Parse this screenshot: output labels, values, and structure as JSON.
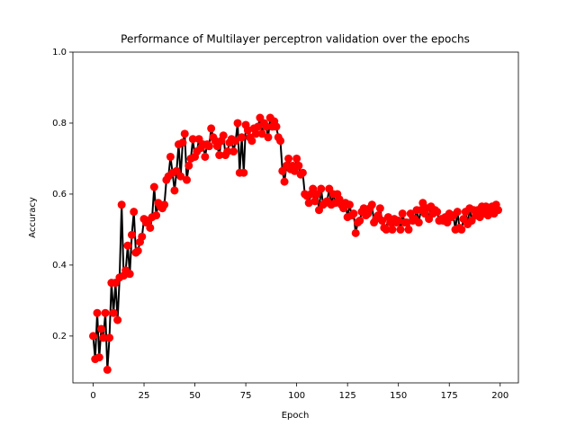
{
  "chart_data": {
    "type": "line",
    "title": "Performance of Multilayer perceptron validation over the epochs",
    "x_label": "Epoch",
    "y_label": "Accuracy",
    "x": [
      0,
      1,
      2,
      3,
      4,
      5,
      6,
      7,
      8,
      9,
      10,
      11,
      12,
      13,
      14,
      15,
      16,
      17,
      18,
      19,
      20,
      21,
      22,
      23,
      24,
      25,
      26,
      27,
      28,
      29,
      30,
      31,
      32,
      33,
      34,
      35,
      36,
      37,
      38,
      39,
      40,
      41,
      42,
      43,
      44,
      45,
      46,
      47,
      48,
      49,
      50,
      51,
      52,
      53,
      54,
      55,
      56,
      57,
      58,
      59,
      60,
      61,
      62,
      63,
      64,
      65,
      66,
      67,
      68,
      69,
      70,
      71,
      72,
      73,
      74,
      75,
      76,
      77,
      78,
      79,
      80,
      81,
      82,
      83,
      84,
      85,
      86,
      87,
      88,
      89,
      90,
      91,
      92,
      93,
      94,
      95,
      96,
      97,
      98,
      99,
      100,
      101,
      102,
      103,
      104,
      105,
      106,
      107,
      108,
      109,
      110,
      111,
      112,
      113,
      114,
      115,
      116,
      117,
      118,
      119,
      120,
      121,
      122,
      123,
      124,
      125,
      126,
      127,
      128,
      129,
      130,
      131,
      132,
      133,
      134,
      135,
      136,
      137,
      138,
      139,
      140,
      141,
      142,
      143,
      144,
      145,
      146,
      147,
      148,
      149,
      150,
      151,
      152,
      153,
      154,
      155,
      156,
      157,
      158,
      159,
      160,
      161,
      162,
      163,
      164,
      165,
      166,
      167,
      168,
      169,
      170,
      171,
      172,
      173,
      174,
      175,
      176,
      177,
      178,
      179,
      180,
      181,
      182,
      183,
      184,
      185,
      186,
      187,
      188,
      189,
      190,
      191,
      192,
      193,
      194,
      195,
      196,
      197,
      198,
      199
    ],
    "series": [
      {
        "color": "#000000",
        "marker_color": "#ff0000",
        "values": [
          0.2,
          0.135,
          0.265,
          0.14,
          0.22,
          0.195,
          0.265,
          0.105,
          0.195,
          0.35,
          0.265,
          0.35,
          0.245,
          0.365,
          0.57,
          0.37,
          0.385,
          0.455,
          0.375,
          0.485,
          0.55,
          0.435,
          0.44,
          0.465,
          0.48,
          0.53,
          0.52,
          0.525,
          0.505,
          0.535,
          0.62,
          0.54,
          0.575,
          0.565,
          0.56,
          0.57,
          0.64,
          0.65,
          0.705,
          0.66,
          0.61,
          0.665,
          0.74,
          0.65,
          0.745,
          0.77,
          0.64,
          0.68,
          0.7,
          0.755,
          0.705,
          0.72,
          0.755,
          0.73,
          0.74,
          0.705,
          0.74,
          0.735,
          0.785,
          0.76,
          0.75,
          0.735,
          0.71,
          0.75,
          0.765,
          0.71,
          0.72,
          0.745,
          0.755,
          0.72,
          0.75,
          0.8,
          0.66,
          0.76,
          0.66,
          0.795,
          0.78,
          0.76,
          0.75,
          0.785,
          0.77,
          0.79,
          0.815,
          0.77,
          0.8,
          0.79,
          0.76,
          0.815,
          0.79,
          0.805,
          0.79,
          0.76,
          0.75,
          0.665,
          0.635,
          0.68,
          0.7,
          0.67,
          0.68,
          0.665,
          0.7,
          0.68,
          0.655,
          0.66,
          0.6,
          0.595,
          0.575,
          0.6,
          0.615,
          0.58,
          0.6,
          0.555,
          0.615,
          0.57,
          0.575,
          0.58,
          0.615,
          0.57,
          0.6,
          0.575,
          0.6,
          0.585,
          0.57,
          0.56,
          0.575,
          0.535,
          0.57,
          0.54,
          0.545,
          0.49,
          0.52,
          0.525,
          0.55,
          0.56,
          0.54,
          0.545,
          0.56,
          0.57,
          0.52,
          0.53,
          0.54,
          0.56,
          0.525,
          0.505,
          0.5,
          0.535,
          0.52,
          0.5,
          0.53,
          0.52,
          0.525,
          0.5,
          0.545,
          0.52,
          0.52,
          0.5,
          0.545,
          0.525,
          0.53,
          0.555,
          0.52,
          0.555,
          0.575,
          0.545,
          0.56,
          0.53,
          0.565,
          0.545,
          0.555,
          0.55,
          0.525,
          0.53,
          0.525,
          0.535,
          0.52,
          0.545,
          0.535,
          0.54,
          0.5,
          0.55,
          0.505,
          0.5,
          0.53,
          0.55,
          0.515,
          0.56,
          0.525,
          0.555,
          0.54,
          0.555,
          0.535,
          0.565,
          0.545,
          0.565,
          0.54,
          0.555,
          0.565,
          0.545,
          0.57,
          0.555
        ]
      }
    ],
    "xlim": [
      -9.95,
      208.95
    ],
    "ylim": [
      0.068,
      1.0
    ],
    "xticks": [
      0,
      25,
      50,
      75,
      100,
      125,
      150,
      175,
      200
    ],
    "yticks": [
      0.2,
      0.4,
      0.6,
      0.8,
      {
        "value": 1,
        "label": "1.0"
      }
    ]
  }
}
